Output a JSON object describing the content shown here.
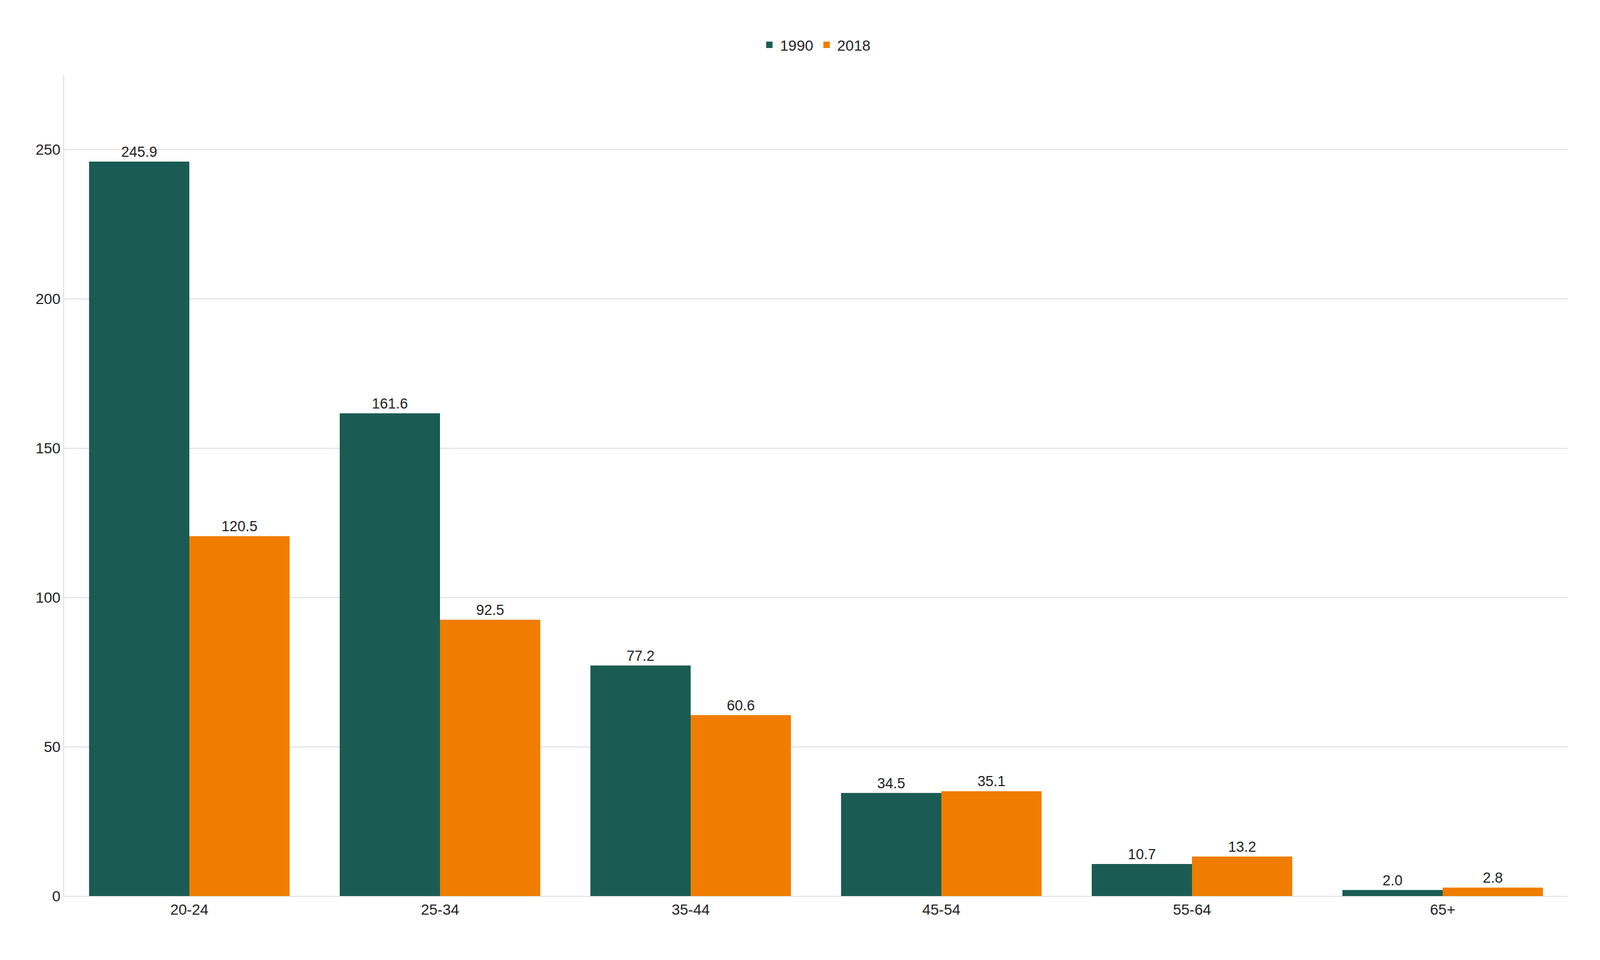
{
  "chart_data": {
    "type": "bar",
    "categories": [
      "20-24",
      "25-34",
      "35-44",
      "45-54",
      "55-64",
      "65+"
    ],
    "series": [
      {
        "name": "1990",
        "color": "#1a5c54",
        "values": [
          245.9,
          161.6,
          77.2,
          34.5,
          10.7,
          2.0
        ],
        "value_labels": [
          "245.9",
          "161.6",
          "77.2",
          "34.5",
          "10.7",
          "2.0"
        ]
      },
      {
        "name": "2018",
        "color": "#f07d00",
        "values": [
          120.5,
          92.5,
          60.6,
          35.1,
          13.2,
          2.8
        ],
        "value_labels": [
          "120.5",
          "92.5",
          "60.6",
          "35.1",
          "13.2",
          "2.8"
        ]
      }
    ],
    "ylim": [
      0,
      275
    ],
    "yticks": [
      0,
      50,
      100,
      150,
      200,
      250
    ],
    "grid": true,
    "legend": "top",
    "data_labels": true
  }
}
